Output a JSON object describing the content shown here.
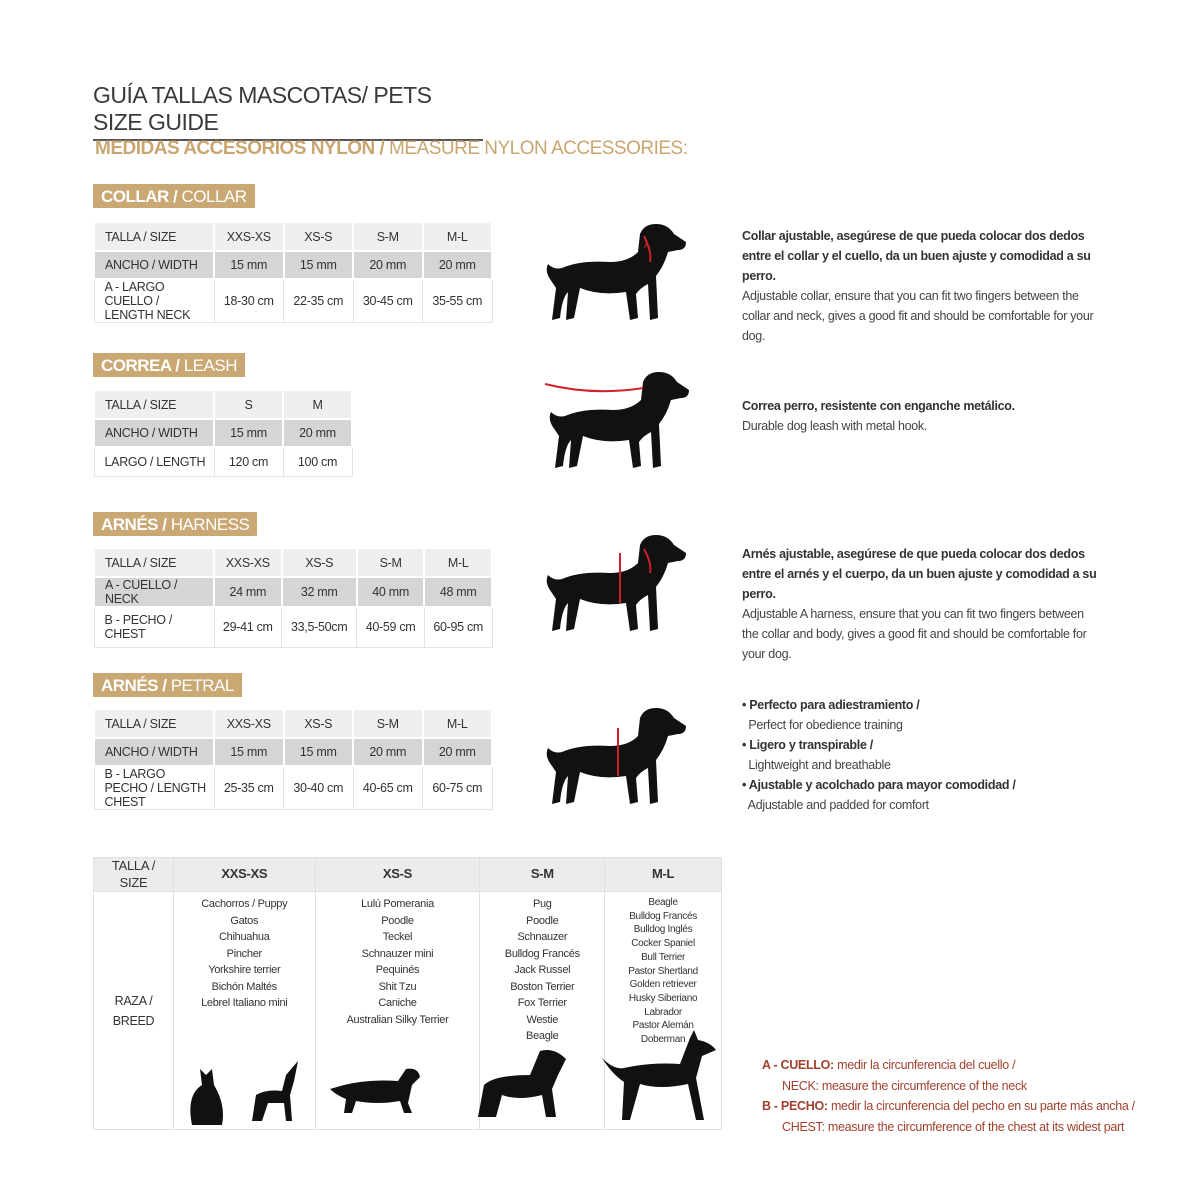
{
  "title": {
    "es": "GUÍA TALLAS MASCOTAS/",
    "en": " PETS SIZE GUIDE"
  },
  "subtitle": {
    "es": "MEDIDAS ACCESORIOS NYLON /",
    "en": " MEASURE NYLON ACCESSORIES:"
  },
  "sections": [
    {
      "label_es": "COLLAR /",
      "label_en": " COLLAR",
      "rows": [
        [
          "TALLA / SIZE",
          "XXS-XS",
          "XS-S",
          "S-M",
          "M-L"
        ],
        [
          "ANCHO / WIDTH",
          "15 mm",
          "15 mm",
          "20 mm",
          "20 mm"
        ],
        [
          "A - LARGO CUELLO / LENGTH NECK",
          "18-30 cm",
          "22-35 cm",
          "30-45 cm",
          "35-55 cm"
        ]
      ],
      "desc_bold": "Collar ajustable, asegúrese de que pueda colocar dos dedos entre el collar y el cuello, da un buen ajuste y comodidad a su perro.",
      "desc": "Adjustable collar, ensure that you can fit two fingers between the collar and neck, gives a good fit and should be comfortable for your dog."
    },
    {
      "label_es": "CORREA /",
      "label_en": " LEASH",
      "rows": [
        [
          "TALLA / SIZE",
          "S",
          "M"
        ],
        [
          "ANCHO / WIDTH",
          "15 mm",
          "20 mm"
        ],
        [
          "LARGO / LENGTH",
          "120 cm",
          "100 cm"
        ]
      ],
      "desc_bold": "Correa perro, resistente con enganche metálico.",
      "desc": "Durable dog leash with metal hook."
    },
    {
      "label_es": "ARNÉS /",
      "label_en": " HARNESS",
      "rows": [
        [
          "TALLA / SIZE",
          "XXS-XS",
          "XS-S",
          "S-M",
          "M-L"
        ],
        [
          "A - CUELLO / NECK",
          "24 mm",
          "32 mm",
          "40 mm",
          "48 mm"
        ],
        [
          "B - PECHO / CHEST",
          "29-41 cm",
          "33,5-50cm",
          "40-59 cm",
          "60-95 cm"
        ]
      ],
      "desc_bold": "Arnés ajustable, asegúrese de que pueda colocar dos dedos entre el arnés y el cuerpo, da un buen ajuste y comodidad a su perro.",
      "desc": "Adjustable A harness, ensure that you can fit two fingers between the collar and body, gives a good fit and should be comfortable for your dog."
    },
    {
      "label_es": "ARNÉS /",
      "label_en": " PETRAL",
      "rows": [
        [
          "TALLA / SIZE",
          "XXS-XS",
          "XS-S",
          "S-M",
          "M-L"
        ],
        [
          "ANCHO / WIDTH",
          "15 mm",
          "15 mm",
          "20 mm",
          "20 mm"
        ],
        [
          "B - LARGO PECHO / LENGTH CHEST",
          "25-35 cm",
          "30-40 cm",
          "40-65 cm",
          "60-75 cm"
        ]
      ],
      "bullets": [
        {
          "b": "• Perfecto para adiestramiento /",
          "t": "Perfect for obedience training"
        },
        {
          "b": "• Ligero y transpirable /",
          "t": "Lightweight and breathable"
        },
        {
          "b": "• Ajustable y acolchado para mayor comodidad /",
          "t": "Adjustable and padded for comfort"
        }
      ]
    }
  ],
  "breed_table": {
    "header": [
      "TALLA /  SIZE",
      "XXS-XS",
      "XS-S",
      "S-M",
      "M-L"
    ],
    "row_label": "RAZA / BREED",
    "breeds": [
      [
        "Cachorros / Puppy",
        "Gatos",
        "Chihuahua",
        "Pincher",
        "Yorkshire terrier",
        "Bichón Maltés",
        "Lebrel Italiano mini"
      ],
      [
        "Lulú Pomerania",
        "Poodle",
        "Teckel",
        "Schnauzer mini",
        "Pequinés",
        "Shit Tzu",
        "Caniche",
        "Australian Silky Terrier"
      ],
      [
        "Pug",
        "Poodle",
        "Schnauzer",
        "Bulldog Francés",
        "Jack Russel",
        "Boston Terrier",
        "Fox Terrier",
        "Westie",
        "Beagle"
      ],
      [
        "Beagle",
        "Bulldog Francés",
        "Bulldog Inglés",
        "Cocker Spaniel",
        "Bull Terrier",
        "Pastor Shertland",
        "Golden retriever",
        "Husky Siberiano",
        "Labrador",
        "Pastor Alemán",
        "Doberman"
      ]
    ]
  },
  "legend": [
    {
      "b": "A - CUELLO:",
      "t": " medir la circunferencia del cuello /",
      "en": "NECK: measure the circumference of the neck"
    },
    {
      "b": "B - PECHO:",
      "t": " medir la circunferencia del pecho en su parte más ancha /",
      "en": "CHEST: measure the circumference of the chest at its widest part"
    }
  ],
  "colors": {
    "gold": "#c9a873",
    "accent_red": "#a2412e",
    "marker_red": "#d0202a"
  }
}
